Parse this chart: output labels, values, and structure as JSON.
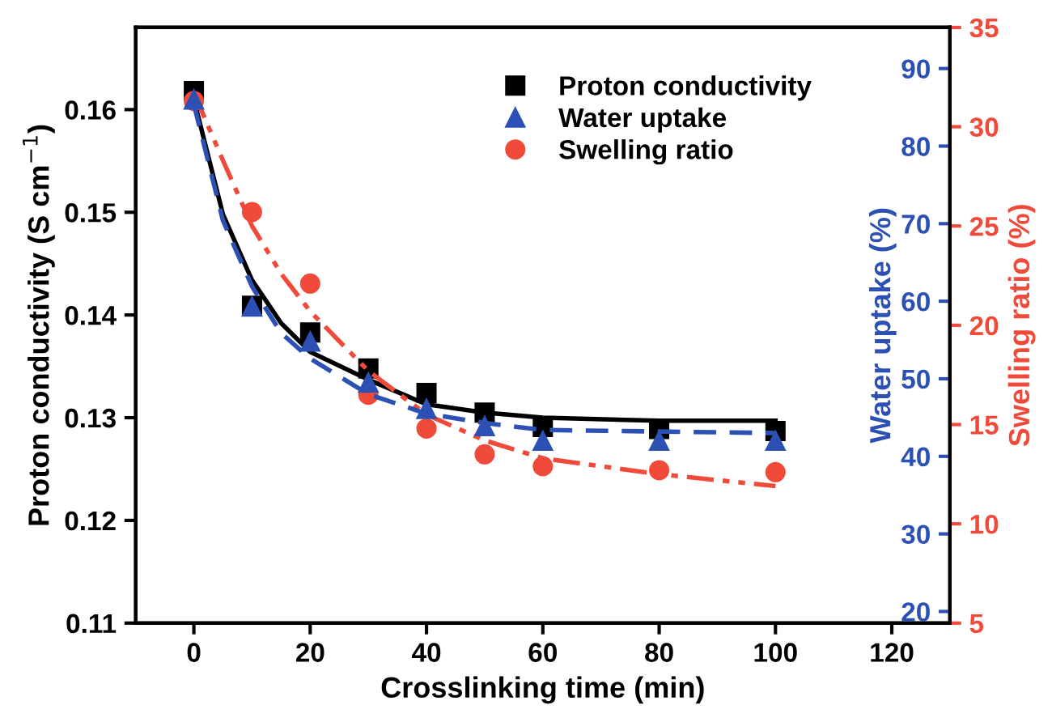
{
  "chart_data": {
    "type": "scatter",
    "xlabel": "Crosslinking time (min)",
    "ylabel": "Proton conductivity (S cm$^{−1}$)",
    "y2label": "Swelling ratio (%)",
    "y3label": "Water uptake (%)",
    "x": [
      0,
      10,
      20,
      30,
      40,
      50,
      60,
      80,
      100
    ],
    "xlim": [
      -10,
      130
    ],
    "xticks": [
      0,
      20,
      40,
      60,
      80,
      100,
      120
    ],
    "ylim": [
      0.11,
      0.168
    ],
    "yticks": [
      0.11,
      0.12,
      0.13,
      0.14,
      0.15,
      0.16
    ],
    "y2lim": [
      5,
      35
    ],
    "y2ticks": [
      5,
      10,
      15,
      20,
      25,
      30,
      35
    ],
    "y3lim": [
      18.5,
      95.3
    ],
    "y3ticks": [
      20,
      30,
      40,
      50,
      60,
      70,
      80,
      90
    ],
    "grid": false,
    "legend": "top right",
    "series": [
      {
        "name": "Proton conductivity",
        "marker": "square",
        "color": "#000000",
        "values": [
          0.1618,
          0.1409,
          0.1383,
          0.1348,
          0.1324,
          0.1305,
          0.1291,
          0.1289,
          0.1287
        ]
      },
      {
        "name": "Water uptake",
        "marker": "triangle",
        "axis": "y3",
        "color": "#2d50b4",
        "values": [
          86.0,
          59.3,
          54.8,
          49.5,
          46.1,
          43.9,
          42.0,
          42.0,
          42.0
        ]
      },
      {
        "name": "Swelling ratio",
        "marker": "circle",
        "axis": "y2",
        "color": "#f04a3a",
        "values": [
          31.3,
          25.7,
          22.1,
          16.5,
          14.8,
          13.5,
          12.9,
          12.7,
          12.6
        ]
      },
      {
        "type": "line",
        "marker": "none",
        "line_style": "solid",
        "color": "#000000",
        "x": [
          0,
          5,
          10,
          15,
          20,
          30,
          40,
          50,
          60,
          80,
          100
        ],
        "values": [
          0.161,
          0.1498,
          0.1434,
          0.1392,
          0.1364,
          0.1337,
          0.1313,
          0.1305,
          0.13,
          0.1297,
          0.1297
        ]
      },
      {
        "type": "line",
        "marker": "none",
        "line_style": "dashed",
        "axis": "y3",
        "color": "#2d50b4",
        "x": [
          0,
          5,
          10,
          15,
          20,
          30,
          40,
          50,
          60,
          80,
          100
        ],
        "values": [
          85.4,
          70.4,
          61.9,
          55.9,
          52.6,
          48.0,
          45.5,
          44.3,
          43.4,
          43.2,
          43.0
        ]
      },
      {
        "type": "line",
        "marker": "none",
        "line_style": "dashdot",
        "axis": "y2",
        "color": "#f04a3a",
        "x": [
          0,
          5,
          10,
          15,
          20,
          30,
          40,
          50,
          60,
          80,
          100
        ],
        "values": [
          31.7,
          28.3,
          25.0,
          22.6,
          20.7,
          17.7,
          15.5,
          14.2,
          13.3,
          12.5,
          11.9
        ]
      }
    ]
  }
}
